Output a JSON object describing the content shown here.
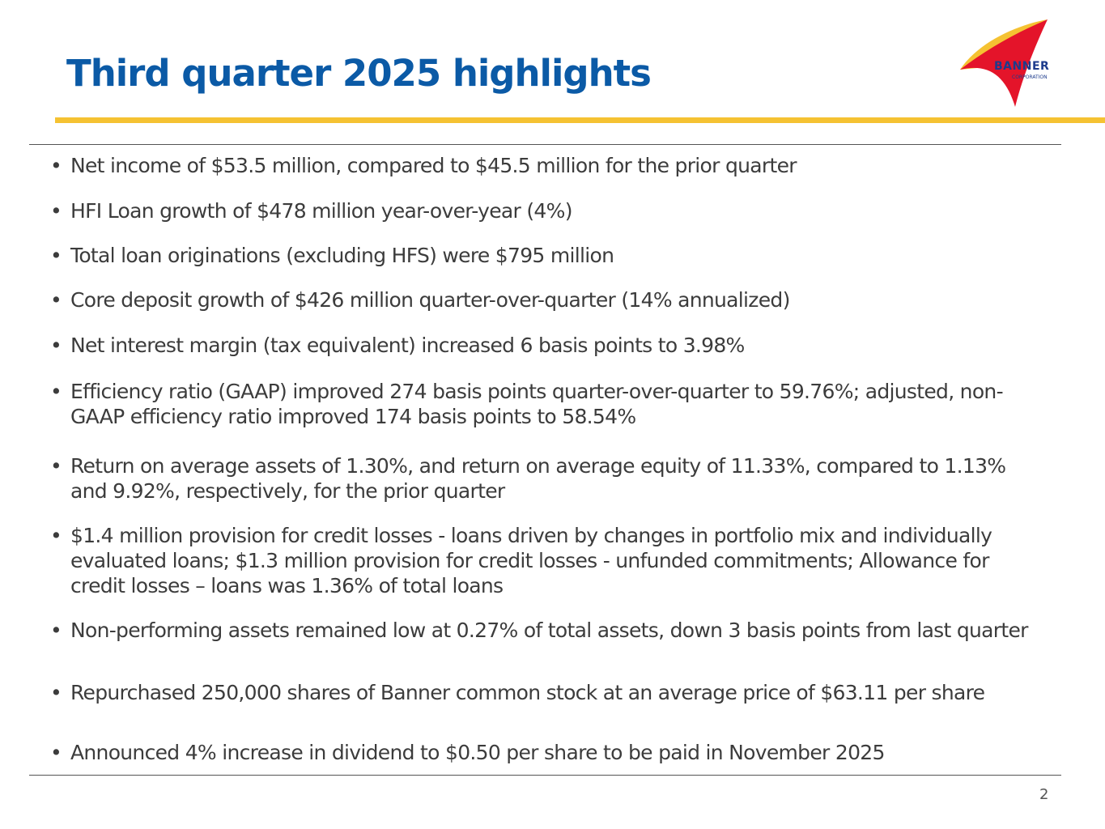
{
  "slide": {
    "title": "Third quarter 2025 highlights",
    "page_number": "2",
    "logo": {
      "name": "BANNER",
      "subtitle": "CORPORATION"
    },
    "colors": {
      "title": "#0b5aa6",
      "accent_rule": "#f5c232",
      "logo_red": "#e4142a",
      "logo_yellow": "#f5c232",
      "logo_text": "#1d3b8c",
      "body_text": "#3c3c3c"
    }
  },
  "highlights": [
    "Net income of $53.5 million, compared to $45.5 million for the prior quarter",
    "HFI Loan growth of $478 million year-over-year (4%)",
    "Total loan originations (excluding HFS) were $795 million",
    "Core deposit growth of $426 million quarter-over-quarter (14% annualized)",
    "Net interest margin (tax equivalent) increased 6 basis points to 3.98%",
    "Efficiency ratio (GAAP) improved 274 basis points quarter-over-quarter to 59.76%; adjusted, non-GAAP efficiency ratio improved 174 basis points to 58.54%",
    "Return on average assets of 1.30%, and return on average equity of 11.33%, compared to 1.13% and 9.92%, respectively, for the prior quarter",
    "$1.4 million provision for credit losses - loans driven by changes in portfolio mix and individually evaluated loans; $1.3 million provision for credit losses - unfunded commitments; Allowance for credit losses – loans was 1.36% of total loans",
    "Non-performing assets remained low at 0.27% of total assets, down 3 basis points from last quarter",
    "Repurchased 250,000 shares of Banner common stock at an average price of $63.11 per share",
    "Announced 4% increase in dividend to $0.50 per share to be paid in November 2025"
  ]
}
